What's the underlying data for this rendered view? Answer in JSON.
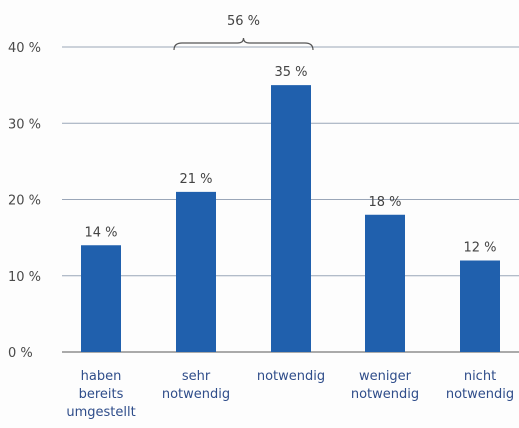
{
  "chart_data": {
    "type": "bar",
    "categories": [
      [
        "haben",
        "bereits",
        "umgestellt"
      ],
      [
        "sehr",
        "notwendig"
      ],
      [
        "notwendig"
      ],
      [
        "weniger",
        "notwendig"
      ],
      [
        "nicht",
        "notwendig"
      ]
    ],
    "values": [
      14,
      21,
      35,
      18,
      12
    ],
    "value_labels": [
      "14 %",
      "21 %",
      "35 %",
      "18 %",
      "12 %"
    ],
    "y_ticks": [
      0,
      10,
      20,
      30,
      40
    ],
    "y_tick_labels": [
      "0 %",
      "10 %",
      "20 %",
      "30 %",
      "40 %"
    ],
    "ylim": [
      0,
      40
    ],
    "grid": true,
    "bracket": {
      "label": "56 %",
      "spans_categories": [
        1,
        2
      ]
    },
    "colors": {
      "bar": "#2060ad",
      "grid": "#9aa6b8",
      "axis": "#7a7a7a"
    }
  }
}
